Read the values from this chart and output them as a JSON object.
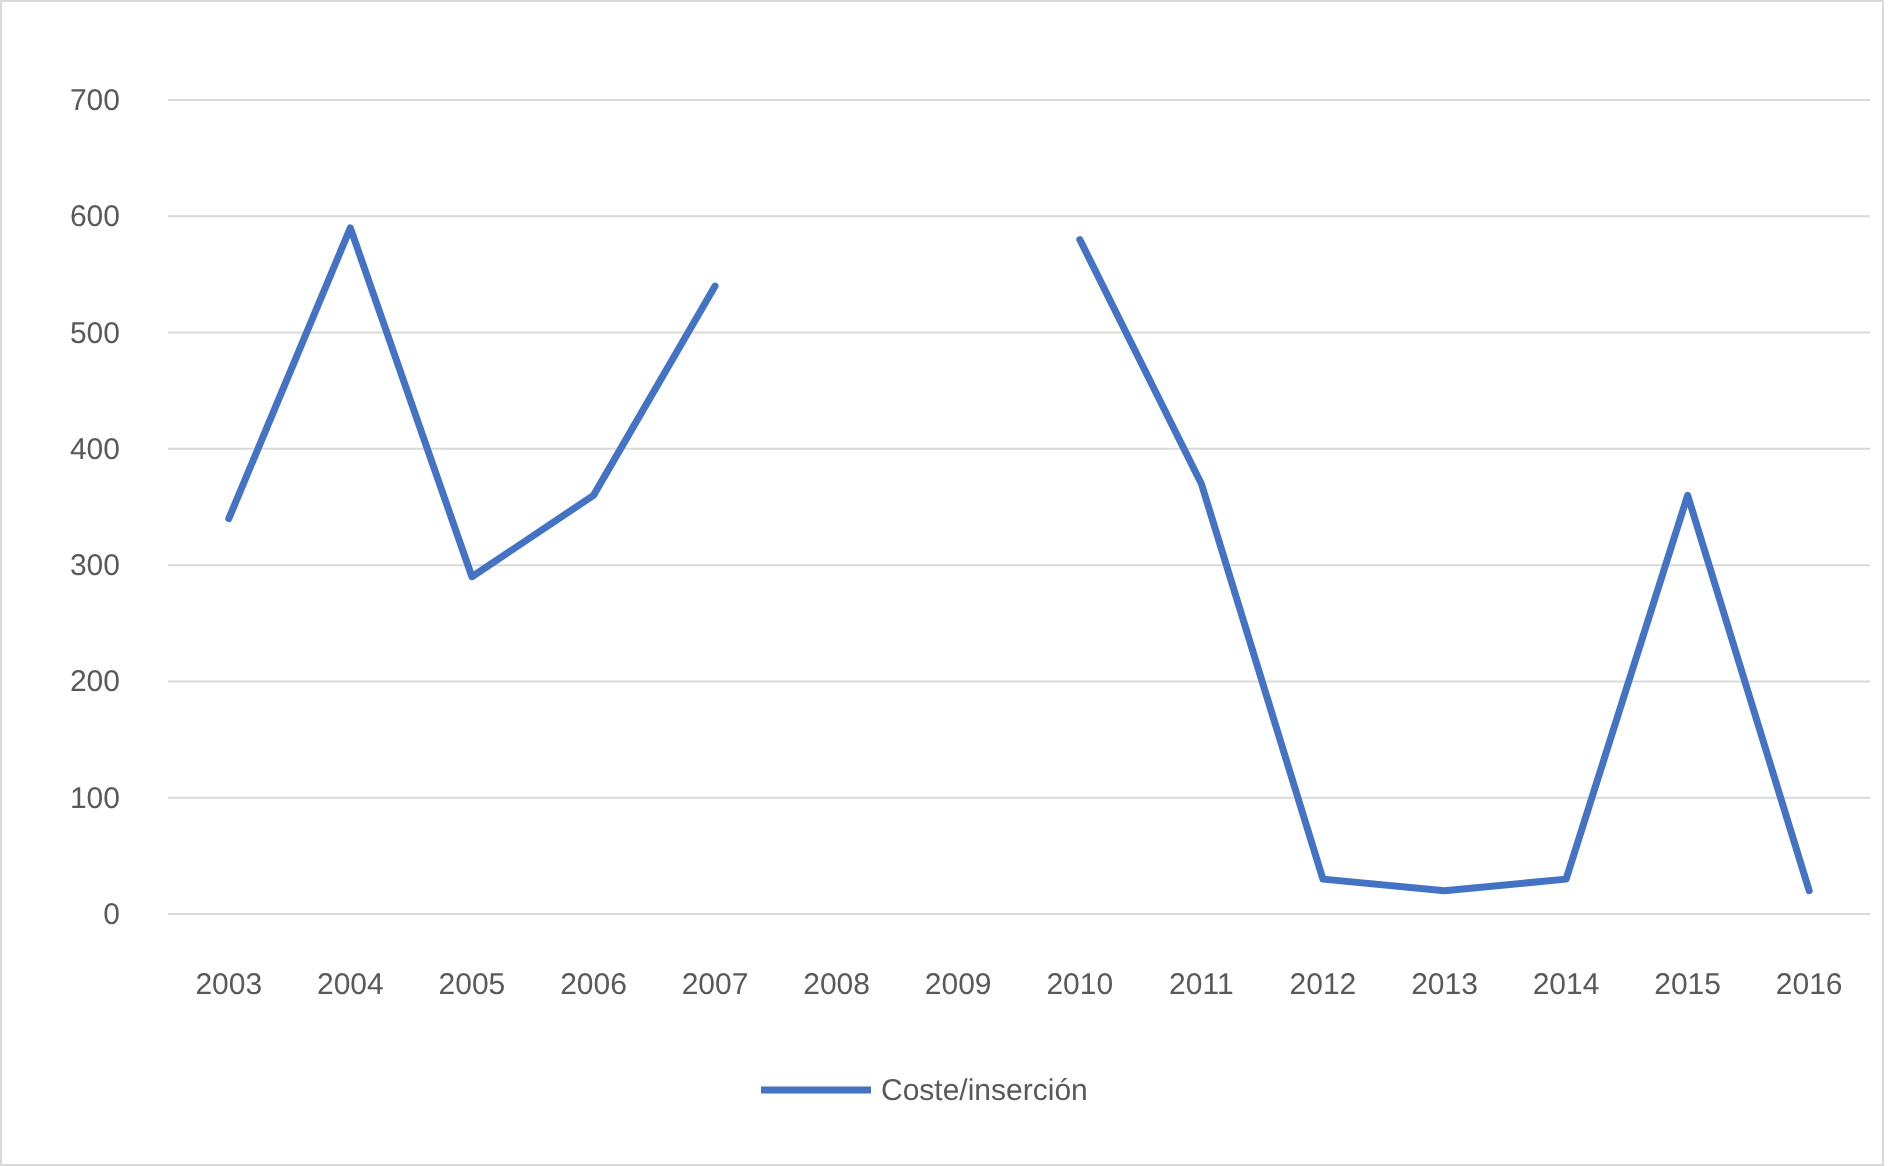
{
  "chart_data": {
    "type": "line",
    "categories": [
      "2003",
      "2004",
      "2005",
      "2006",
      "2007",
      "2008",
      "2009",
      "2010",
      "2011",
      "2012",
      "2013",
      "2014",
      "2015",
      "2016"
    ],
    "series": [
      {
        "name": "Coste/inserción",
        "color": "#4472c4",
        "values": [
          340,
          590,
          290,
          360,
          540,
          null,
          null,
          580,
          370,
          30,
          20,
          30,
          360,
          20
        ]
      }
    ],
    "ylim": [
      0,
      700
    ],
    "yticks": [
      0,
      100,
      200,
      300,
      400,
      500,
      600,
      700
    ],
    "grid": "y",
    "legend": "bottom",
    "marker": "none",
    "line_style": "solid"
  }
}
